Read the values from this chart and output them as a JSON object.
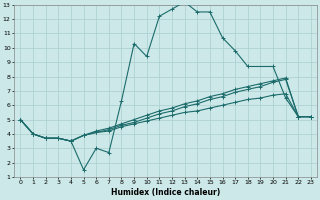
{
  "xlabel": "Humidex (Indice chaleur)",
  "xlim": [
    -0.5,
    23.5
  ],
  "ylim": [
    1,
    13
  ],
  "xticks": [
    0,
    1,
    2,
    3,
    4,
    5,
    6,
    7,
    8,
    9,
    10,
    11,
    12,
    13,
    14,
    15,
    16,
    17,
    18,
    19,
    20,
    21,
    22,
    23
  ],
  "yticks": [
    1,
    2,
    3,
    4,
    5,
    6,
    7,
    8,
    9,
    10,
    11,
    12,
    13
  ],
  "bg_color": "#cce8e8",
  "line_color": "#1c6b6b",
  "grid_color": "#aacece",
  "series": [
    {
      "x": [
        0,
        1,
        2,
        3,
        4,
        5,
        6,
        7,
        8,
        9,
        10,
        11,
        12,
        13,
        14,
        15,
        16,
        17,
        18,
        20,
        21,
        22,
        23
      ],
      "y": [
        5,
        4,
        3.7,
        3.7,
        3.5,
        1.5,
        3.0,
        2.7,
        6.3,
        10.3,
        9.4,
        12.2,
        12.7,
        13.2,
        12.5,
        12.5,
        10.7,
        9.8,
        8.7,
        8.7,
        6.5,
        5.2,
        5.2
      ]
    },
    {
      "x": [
        0,
        1,
        2,
        3,
        4,
        5,
        6,
        7,
        8,
        9,
        10,
        11,
        12,
        13,
        14,
        15,
        16,
        17,
        18,
        19,
        20,
        21,
        22,
        23
      ],
      "y": [
        5.0,
        4.0,
        3.7,
        3.7,
        3.5,
        3.9,
        4.1,
        4.2,
        4.5,
        4.7,
        4.9,
        5.1,
        5.3,
        5.5,
        5.6,
        5.8,
        6.0,
        6.2,
        6.4,
        6.5,
        6.7,
        6.8,
        5.2,
        5.2
      ]
    },
    {
      "x": [
        0,
        1,
        2,
        3,
        4,
        5,
        6,
        7,
        8,
        9,
        10,
        11,
        12,
        13,
        14,
        15,
        16,
        17,
        18,
        19,
        20,
        21,
        22,
        23
      ],
      "y": [
        5.0,
        4.0,
        3.7,
        3.7,
        3.5,
        3.9,
        4.2,
        4.4,
        4.7,
        5.0,
        5.3,
        5.6,
        5.8,
        6.1,
        6.3,
        6.6,
        6.8,
        7.1,
        7.3,
        7.5,
        7.7,
        7.9,
        5.2,
        5.2
      ]
    },
    {
      "x": [
        0,
        1,
        2,
        3,
        4,
        5,
        6,
        7,
        8,
        9,
        10,
        11,
        12,
        13,
        14,
        15,
        16,
        17,
        18,
        19,
        20,
        21,
        22,
        23
      ],
      "y": [
        5.0,
        4.0,
        3.7,
        3.7,
        3.5,
        3.9,
        4.1,
        4.3,
        4.6,
        4.8,
        5.1,
        5.4,
        5.6,
        5.9,
        6.1,
        6.4,
        6.6,
        6.9,
        7.1,
        7.3,
        7.6,
        7.8,
        5.2,
        5.2
      ]
    }
  ]
}
